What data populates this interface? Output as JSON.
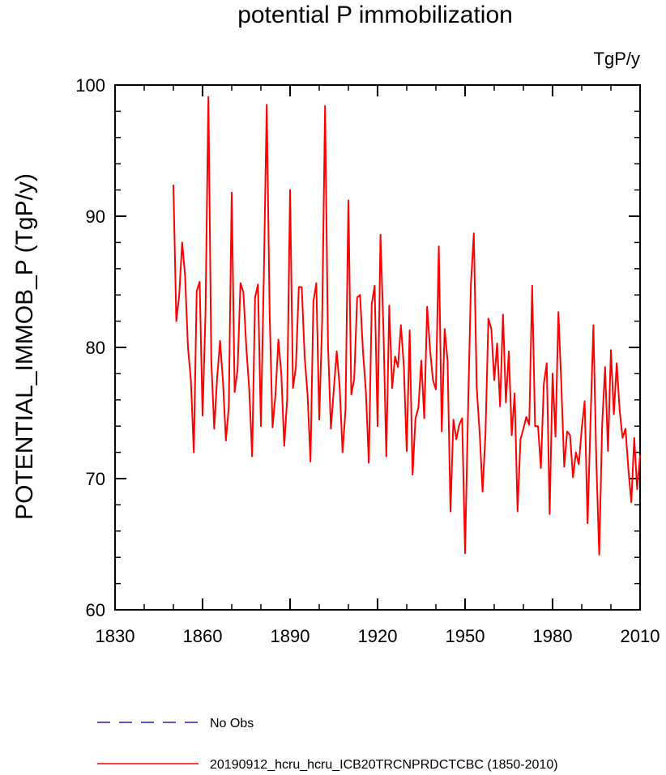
{
  "chart_data": {
    "type": "line",
    "title": "potential P immobilization",
    "units": "TgP/y",
    "xlabel": "",
    "ylabel": "POTENTIAL_IMMOB_P  (TgP/y)",
    "xlim": [
      1830,
      2010
    ],
    "ylim": [
      60,
      100
    ],
    "x_ticks": [
      "1830",
      "1860",
      "1890",
      "1920",
      "1950",
      "1980",
      "2010"
    ],
    "y_ticks": [
      "60",
      "70",
      "80",
      "90",
      "100"
    ],
    "legend": [
      {
        "label": "No Obs",
        "style": "dashed",
        "color": "#1f1fbf"
      },
      {
        "label": "20190912_hcru_hcru_ICB20TRCNPRDCTCBC (1850-2010)",
        "style": "solid",
        "color": "#ff0000"
      }
    ],
    "series": [
      {
        "name": "20190912_hcru_hcru_ICB20TRCNPRDCTCBC (1850-2010)",
        "color": "#ff0000",
        "x": [
          1850,
          1851,
          1852,
          1853,
          1854,
          1855,
          1856,
          1857,
          1858,
          1859,
          1860,
          1861,
          1862,
          1863,
          1864,
          1865,
          1866,
          1867,
          1868,
          1869,
          1870,
          1871,
          1872,
          1873,
          1874,
          1875,
          1876,
          1877,
          1878,
          1879,
          1880,
          1881,
          1882,
          1883,
          1884,
          1885,
          1886,
          1887,
          1888,
          1889,
          1890,
          1891,
          1892,
          1893,
          1894,
          1895,
          1896,
          1897,
          1898,
          1899,
          1900,
          1901,
          1902,
          1903,
          1904,
          1905,
          1906,
          1907,
          1908,
          1909,
          1910,
          1911,
          1912,
          1913,
          1914,
          1915,
          1916,
          1917,
          1918,
          1919,
          1920,
          1921,
          1922,
          1923,
          1924,
          1925,
          1926,
          1927,
          1928,
          1929,
          1930,
          1931,
          1932,
          1933,
          1934,
          1935,
          1936,
          1937,
          1938,
          1939,
          1940,
          1941,
          1942,
          1943,
          1944,
          1945,
          1946,
          1947,
          1948,
          1949,
          1950,
          1951,
          1952,
          1953,
          1954,
          1955,
          1956,
          1957,
          1958,
          1959,
          1960,
          1961,
          1962,
          1963,
          1964,
          1965,
          1966,
          1967,
          1968,
          1969,
          1970,
          1971,
          1972,
          1973,
          1974,
          1975,
          1976,
          1977,
          1978,
          1979,
          1980,
          1981,
          1982,
          1983,
          1984,
          1985,
          1986,
          1987,
          1988,
          1989,
          1990,
          1991,
          1992,
          1993,
          1994,
          1995,
          1996,
          1997,
          1998,
          1999,
          2000,
          2001,
          2002,
          2003,
          2004,
          2005,
          2006,
          2007,
          2008,
          2009,
          2010
        ],
        "y": [
          92.4,
          82.0,
          84.0,
          88.0,
          85.5,
          80.0,
          77.5,
          72.0,
          84.3,
          85.0,
          74.8,
          82.5,
          99.1,
          79.0,
          73.8,
          77.7,
          80.5,
          77.4,
          72.9,
          75.5,
          91.8,
          76.6,
          78.3,
          84.9,
          84.2,
          80.0,
          76.8,
          71.7,
          83.8,
          84.8,
          74.0,
          85.4,
          98.5,
          82.6,
          73.9,
          76.4,
          80.6,
          78.0,
          72.5,
          76.0,
          92.0,
          76.9,
          78.5,
          84.6,
          84.6,
          79.3,
          76.4,
          71.3,
          83.5,
          84.9,
          74.5,
          82.0,
          98.4,
          80.3,
          73.8,
          76.8,
          79.7,
          77.0,
          72.0,
          75.2,
          91.2,
          76.4,
          77.6,
          83.8,
          84.0,
          79.7,
          76.6,
          71.2,
          83.3,
          84.7,
          74.0,
          88.6,
          81.5,
          71.7,
          83.2,
          76.9,
          79.3,
          78.5,
          81.7,
          78.6,
          72.1,
          81.3,
          70.3,
          74.6,
          75.4,
          79.0,
          74.6,
          83.1,
          79.8,
          77.5,
          76.8,
          87.7,
          73.6,
          81.4,
          79.0,
          67.5,
          74.5,
          73.0,
          74.1,
          74.6,
          64.3,
          75.0,
          84.8,
          88.7,
          76.9,
          73.5,
          69.0,
          73.4,
          82.2,
          81.4,
          77.5,
          80.3,
          75.5,
          82.5,
          75.8,
          79.7,
          73.3,
          76.5,
          67.5,
          73.0,
          73.8,
          74.7,
          74.1,
          84.7,
          74.0,
          74.0,
          70.8,
          77.2,
          78.8,
          67.3,
          78.0,
          73.2,
          82.7,
          77.2,
          70.9,
          73.6,
          73.3,
          70.1,
          72.0,
          71.1,
          73.8,
          75.9,
          66.6,
          74.3,
          81.7,
          71.3,
          64.2,
          74.1,
          78.5,
          72.1,
          79.8,
          74.9,
          78.8,
          75.2,
          73.1,
          73.8,
          70.7,
          68.2,
          73.1,
          69.2,
          71.8
        ]
      }
    ]
  }
}
